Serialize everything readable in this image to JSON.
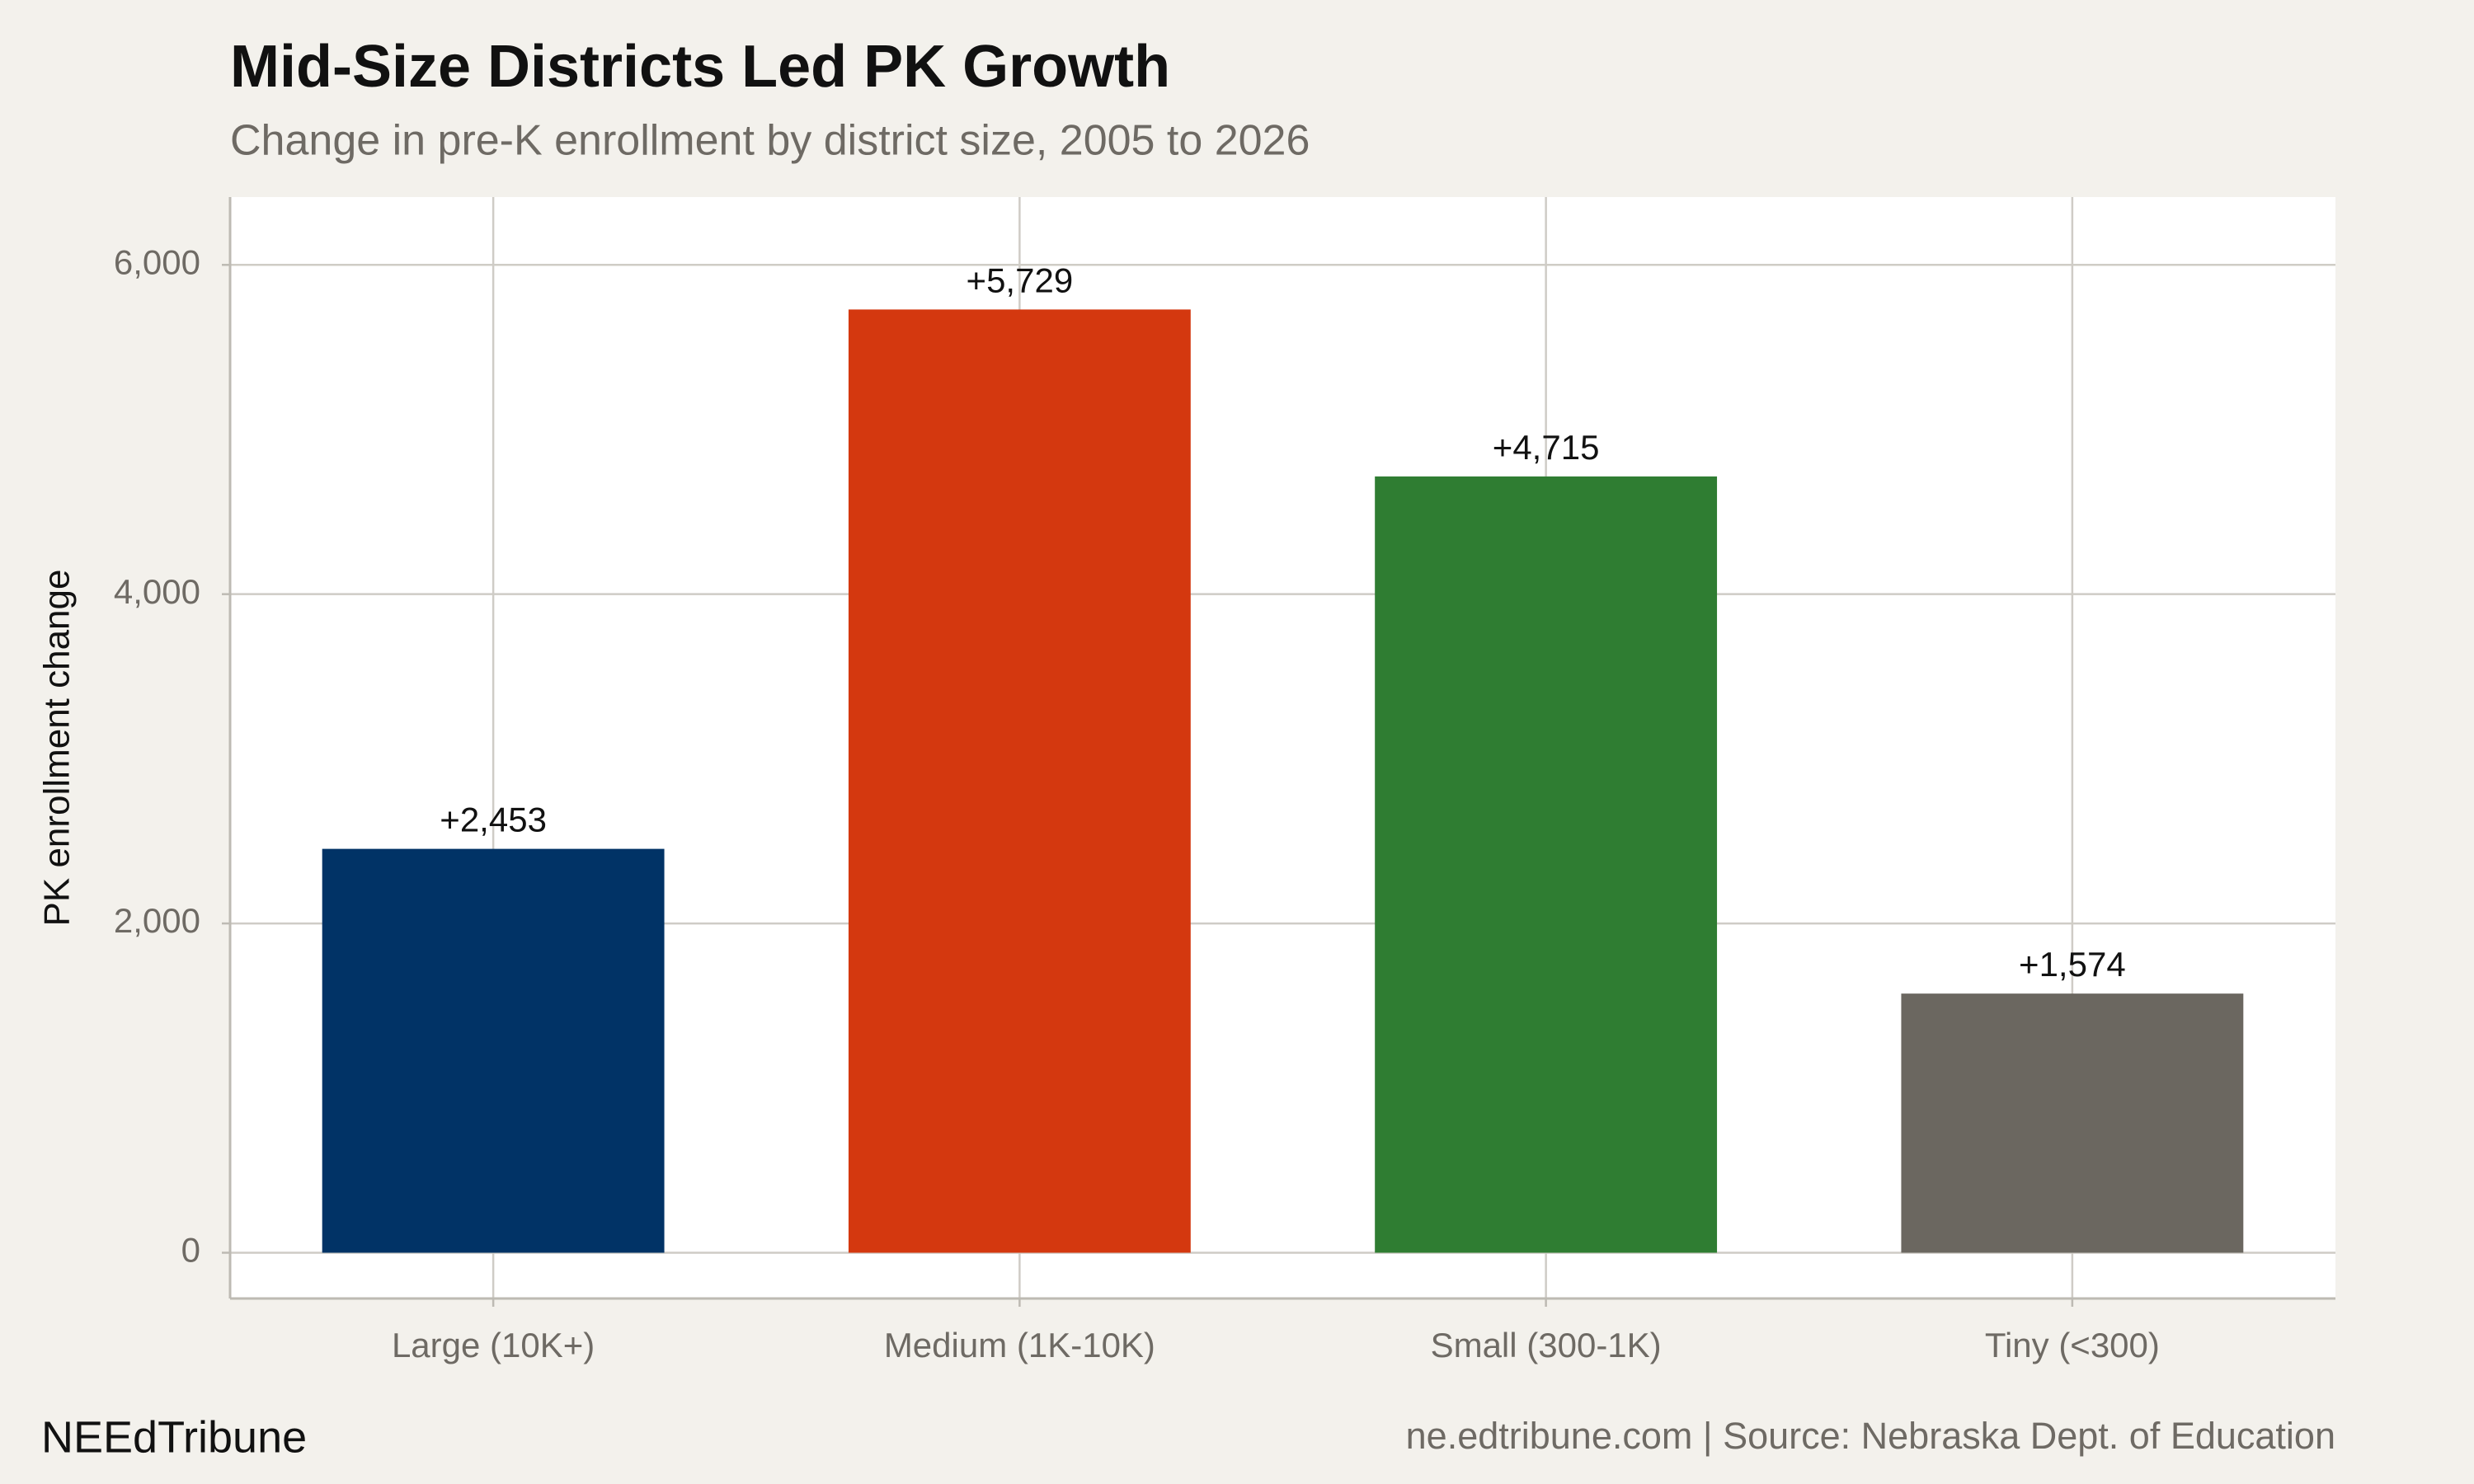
{
  "chart_data": {
    "type": "bar",
    "title": "Mid-Size Districts Led PK Growth",
    "subtitle": "Change in pre-K enrollment by district size, 2005 to 2026",
    "y_label": "PK enrollment change",
    "categories": [
      "Large (10K+)",
      "Medium (1K-10K)",
      "Small (300-1K)",
      "Tiny (<300)"
    ],
    "values": [
      2453,
      5729,
      4715,
      1574
    ],
    "value_labels": [
      "+2,453",
      "+5,729",
      "+4,715",
      "+1,574"
    ],
    "colors": [
      "#013366",
      "#d4380f",
      "#2f7d32",
      "#6b6760"
    ],
    "ylim": [
      -278,
      6412
    ],
    "yticks": [
      0,
      {
        "value": 2000,
        "label": "2,000"
      },
      {
        "value": 4000,
        "label": "4,000"
      },
      {
        "value": 6000,
        "label": "6,000"
      }
    ],
    "grid": true,
    "brand": "NEEdTribune",
    "caption": "ne.edtribune.com | Source: Nebraska Dept. of Education"
  }
}
